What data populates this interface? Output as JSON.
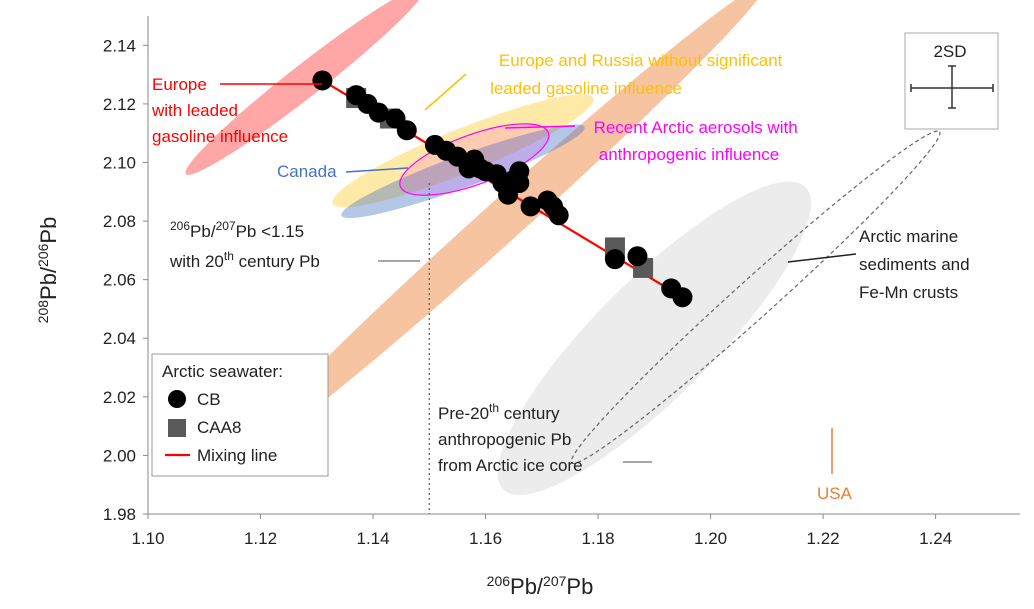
{
  "chart_data": {
    "type": "scatter",
    "xlabel_parts": [
      "206",
      "Pb/",
      "207",
      "Pb"
    ],
    "ylabel_parts": [
      "208",
      "Pb/",
      "206",
      "Pb"
    ],
    "xlim": [
      1.1,
      1.255
    ],
    "ylim": [
      1.98,
      2.15
    ],
    "xticks": [
      "1.10",
      "1.12",
      "1.14",
      "1.16",
      "1.18",
      "1.20",
      "1.22",
      "1.24"
    ],
    "yticks": [
      "1.98",
      "2.00",
      "2.02",
      "2.04",
      "2.06",
      "2.08",
      "2.10",
      "2.12",
      "2.14"
    ],
    "grid": false,
    "legend": {
      "title": "Arctic seawater:",
      "items": [
        "CB",
        "CAA8",
        "Mixing line"
      ],
      "position": "bottom-left"
    },
    "colors": {
      "cb": "#000000",
      "caa8": "#595959",
      "mixing_line": "#ff0000",
      "europe": "#ff0000",
      "europe_russia": "#ffc000",
      "arctic_aerosols": "#ff00ff",
      "canada": "#4472c4",
      "usa": "#ed7d31"
    },
    "series": [
      {
        "name": "CB",
        "marker": "circle",
        "points": [
          [
            1.131,
            2.128
          ],
          [
            1.137,
            2.123
          ],
          [
            1.139,
            2.12
          ],
          [
            1.141,
            2.117
          ],
          [
            1.144,
            2.115
          ],
          [
            1.146,
            2.111
          ],
          [
            1.151,
            2.106
          ],
          [
            1.153,
            2.104
          ],
          [
            1.155,
            2.102
          ],
          [
            1.157,
            2.098
          ],
          [
            1.158,
            2.101
          ],
          [
            1.159,
            2.098
          ],
          [
            1.16,
            2.097
          ],
          [
            1.162,
            2.096
          ],
          [
            1.163,
            2.093
          ],
          [
            1.164,
            2.089
          ],
          [
            1.165,
            2.094
          ],
          [
            1.166,
            2.097
          ],
          [
            1.166,
            2.093
          ],
          [
            1.168,
            2.085
          ],
          [
            1.171,
            2.087
          ],
          [
            1.172,
            2.085
          ],
          [
            1.173,
            2.082
          ],
          [
            1.183,
            2.067
          ],
          [
            1.187,
            2.068
          ],
          [
            1.193,
            2.057
          ],
          [
            1.195,
            2.054
          ]
        ]
      },
      {
        "name": "CAA8",
        "marker": "square",
        "points": [
          [
            1.137,
            2.122
          ],
          [
            1.143,
            2.115
          ],
          [
            1.183,
            2.071
          ],
          [
            1.188,
            2.064
          ]
        ]
      },
      {
        "name": "Mixing line",
        "type": "line",
        "points": [
          [
            1.131,
            2.128
          ],
          [
            1.195,
            2.054
          ]
        ]
      }
    ],
    "regions": [
      {
        "id": "usa",
        "label": "USA",
        "shape": "ellipse",
        "center": [
          1.163,
          2.08
        ],
        "semi_axes": [
          0.063,
          0.007
        ],
        "rotation_deg": 42,
        "fill": "#ed7d31",
        "opacity": 0.45
      },
      {
        "id": "europe",
        "label": "Europe with leaded gasoline influence",
        "shape": "ellipse",
        "center": [
          1.128,
          2.128
        ],
        "semi_axes": [
          0.027,
          0.0055
        ],
        "rotation_deg": 38,
        "fill": "#ff0000",
        "opacity": 0.35
      },
      {
        "id": "europe_russia",
        "label": "Europe and Russia without significant leaded gasoline influence",
        "shape": "ellipse",
        "center": [
          1.156,
          2.104
        ],
        "semi_axes": [
          0.025,
          0.0075
        ],
        "rotation_deg": 22,
        "fill": "#ffc000",
        "opacity": 0.35
      },
      {
        "id": "canada",
        "label": "Canada",
        "shape": "ellipse",
        "center": [
          1.156,
          2.097
        ],
        "semi_axes": [
          0.023,
          0.0055
        ],
        "rotation_deg": 20,
        "fill": "#4472c4",
        "opacity": 0.4
      },
      {
        "id": "arctic_aerosols",
        "label": "Recent Arctic aerosols with anthropogenic influence",
        "shape": "ellipse",
        "center": [
          1.158,
          2.101
        ],
        "semi_axes": [
          0.014,
          0.0085
        ],
        "rotation_deg": 20,
        "fill": "#ff00ff",
        "opacity": 0.12,
        "outline": "#ff00ff"
      },
      {
        "id": "ice_core",
        "label": "Pre-20th century anthropogenic Pb from Arctic ice core",
        "shape": "ellipse",
        "center": [
          1.19,
          2.04
        ],
        "semi_axes": [
          0.038,
          0.02
        ],
        "rotation_deg": 45,
        "fill": "#bfbfbf",
        "opacity": 0.3
      },
      {
        "id": "marine",
        "label": "Arctic marine sediments and Fe-Mn crusts",
        "shape": "ellipse",
        "center": [
          1.208,
          2.054
        ],
        "semi_axes": [
          0.044,
          0.0065
        ],
        "rotation_deg": 42,
        "fill": "none",
        "outline": "#666666",
        "dashed": true
      }
    ],
    "threshold_line": {
      "x": 1.15,
      "label_parts": [
        "206",
        "Pb/",
        "207",
        "Pb  <1.15",
        "with 20",
        "th",
        " century Pb"
      ]
    },
    "error_bar_label": "2SD",
    "annotations": {
      "europe": [
        "Europe",
        "with leaded",
        "gasoline influence"
      ],
      "europe_russia": [
        "Europe and Russia without significant",
        "leaded gasoline influence"
      ],
      "arctic_aerosols": [
        "Recent Arctic aerosols with",
        "anthropogenic influence"
      ],
      "canada": "Canada",
      "marine": [
        "Arctic marine",
        "sediments and",
        "Fe-Mn crusts"
      ],
      "ice_core": [
        "Pre-20",
        "th",
        " century",
        "anthropogenic Pb",
        "from Arctic ice core"
      ],
      "usa": "USA"
    }
  }
}
